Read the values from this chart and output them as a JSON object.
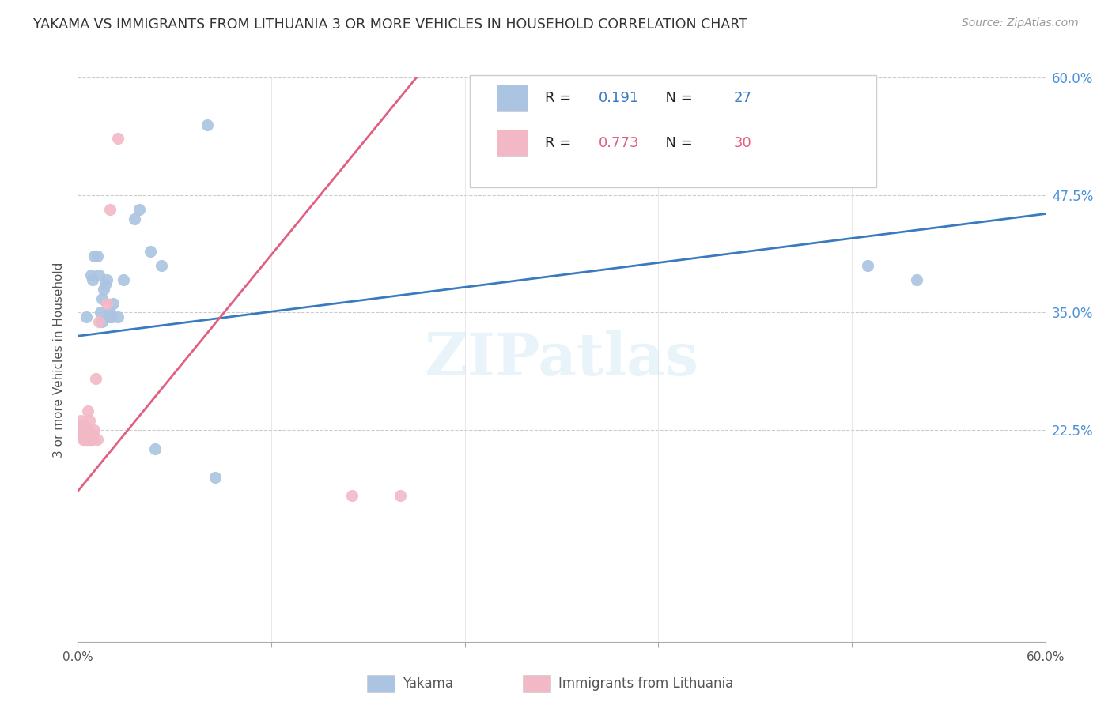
{
  "title": "YAKAMA VS IMMIGRANTS FROM LITHUANIA 3 OR MORE VEHICLES IN HOUSEHOLD CORRELATION CHART",
  "source": "Source: ZipAtlas.com",
  "ylabel": "3 or more Vehicles in Household",
  "xmin": 0.0,
  "xmax": 0.6,
  "ymin": 0.0,
  "ymax": 0.6,
  "blue_color": "#aac4e2",
  "pink_color": "#f2b8c6",
  "blue_line_color": "#3a7abf",
  "pink_line_color": "#e06080",
  "blue_r": "0.191",
  "blue_n": "27",
  "pink_r": "0.773",
  "pink_n": "30",
  "watermark": "ZIPatlas",
  "yakama_x": [
    0.005,
    0.008,
    0.009,
    0.01,
    0.012,
    0.013,
    0.014,
    0.015,
    0.015,
    0.016,
    0.017,
    0.018,
    0.019,
    0.02,
    0.021,
    0.022,
    0.025,
    0.028,
    0.035,
    0.038,
    0.045,
    0.048,
    0.052,
    0.08,
    0.085,
    0.49,
    0.52
  ],
  "yakama_y": [
    0.345,
    0.39,
    0.385,
    0.41,
    0.41,
    0.39,
    0.35,
    0.34,
    0.365,
    0.375,
    0.38,
    0.385,
    0.345,
    0.35,
    0.345,
    0.36,
    0.345,
    0.385,
    0.45,
    0.46,
    0.415,
    0.205,
    0.4,
    0.55,
    0.175,
    0.4,
    0.385
  ],
  "lithuania_x": [
    0.001,
    0.002,
    0.002,
    0.003,
    0.003,
    0.003,
    0.004,
    0.004,
    0.004,
    0.005,
    0.005,
    0.005,
    0.006,
    0.006,
    0.006,
    0.006,
    0.007,
    0.007,
    0.008,
    0.009,
    0.009,
    0.01,
    0.011,
    0.012,
    0.013,
    0.018,
    0.02,
    0.025,
    0.17,
    0.2
  ],
  "lithuania_y": [
    0.225,
    0.22,
    0.235,
    0.22,
    0.215,
    0.23,
    0.215,
    0.22,
    0.225,
    0.215,
    0.22,
    0.215,
    0.215,
    0.22,
    0.225,
    0.245,
    0.215,
    0.235,
    0.215,
    0.22,
    0.215,
    0.225,
    0.28,
    0.215,
    0.34,
    0.36,
    0.46,
    0.535,
    0.155,
    0.155
  ],
  "blue_trend_x": [
    0.0,
    0.6
  ],
  "blue_trend_y": [
    0.325,
    0.455
  ],
  "pink_trend_x": [
    0.0,
    0.21
  ],
  "pink_trend_y": [
    0.16,
    0.6
  ]
}
